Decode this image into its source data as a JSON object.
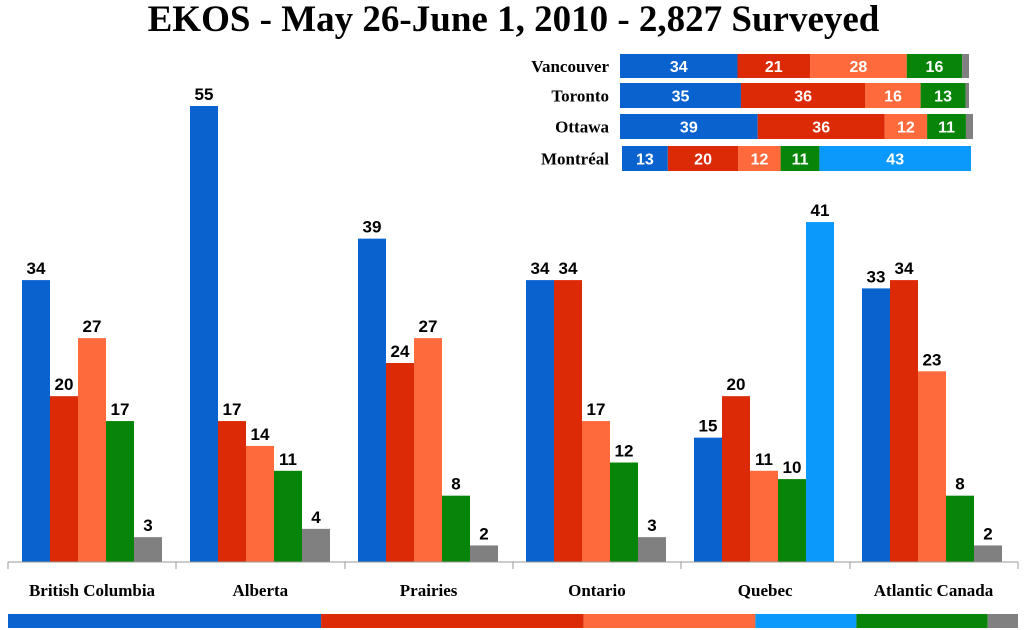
{
  "title": "EKOS - May 26-June 1, 2010 - 2,827 Surveyed",
  "colors": {
    "party1": "#0a62cf",
    "party2": "#dc2a06",
    "party3": "#fe6a3c",
    "party4": "#088508",
    "party5": "#0b99fc",
    "party6": "#808080"
  },
  "chart_data": [
    {
      "type": "bar",
      "categories": [
        "British Columbia",
        "Alberta",
        "Prairies",
        "Ontario",
        "Quebec",
        "Atlantic Canada"
      ],
      "ylim": [
        0,
        60
      ],
      "series": [
        {
          "color_key": "party1",
          "values": [
            34,
            55,
            39,
            34,
            15,
            33
          ]
        },
        {
          "color_key": "party2",
          "values": [
            20,
            17,
            24,
            34,
            20,
            34
          ]
        },
        {
          "color_key": "party3",
          "values": [
            27,
            14,
            27,
            17,
            11,
            23
          ]
        },
        {
          "color_key": "party4",
          "values": [
            17,
            11,
            8,
            12,
            10,
            8
          ]
        },
        {
          "color_key": "party5",
          "values": [
            null,
            null,
            null,
            null,
            41,
            null
          ]
        },
        {
          "color_key": "party6",
          "values": [
            3,
            4,
            2,
            3,
            null,
            2
          ]
        }
      ]
    },
    {
      "type": "bar",
      "orientation": "horizontal",
      "stacked": true,
      "categories": [
        "Vancouver",
        "Toronto",
        "Ottawa",
        "Montréal"
      ],
      "rows": [
        {
          "segments": [
            {
              "color_key": "party1",
              "value": 34
            },
            {
              "color_key": "party2",
              "value": 21
            },
            {
              "color_key": "party3",
              "value": 28
            },
            {
              "color_key": "party4",
              "value": 16
            },
            {
              "color_key": "party6",
              "value": 2
            }
          ]
        },
        {
          "segments": [
            {
              "color_key": "party1",
              "value": 35
            },
            {
              "color_key": "party2",
              "value": 36
            },
            {
              "color_key": "party3",
              "value": 16
            },
            {
              "color_key": "party4",
              "value": 13
            },
            {
              "color_key": "party6",
              "value": 1
            }
          ]
        },
        {
          "segments": [
            {
              "color_key": "party1",
              "value": 39
            },
            {
              "color_key": "party2",
              "value": 36
            },
            {
              "color_key": "party3",
              "value": 12
            },
            {
              "color_key": "party4",
              "value": 11
            },
            {
              "color_key": "party6",
              "value": 2
            }
          ]
        },
        {
          "segments": [
            {
              "color_key": "party1",
              "value": 13
            },
            {
              "color_key": "party2",
              "value": 20
            },
            {
              "color_key": "party3",
              "value": 12
            },
            {
              "color_key": "party4",
              "value": 11
            },
            {
              "color_key": "party5",
              "value": 43
            }
          ]
        }
      ]
    }
  ],
  "footer_strip": [
    {
      "color_key": "party1",
      "value": 31
    },
    {
      "color_key": "party2",
      "value": 26
    },
    {
      "color_key": "party3",
      "value": 17
    },
    {
      "color_key": "party5",
      "value": 10
    },
    {
      "color_key": "party4",
      "value": 13
    },
    {
      "color_key": "party6",
      "value": 3
    }
  ]
}
